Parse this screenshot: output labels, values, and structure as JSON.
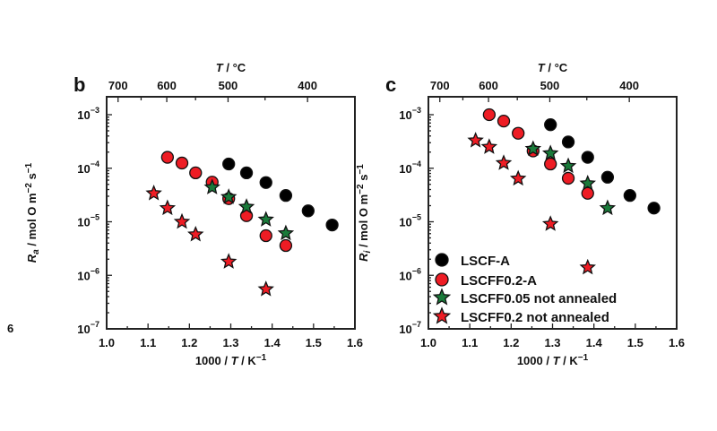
{
  "page_label": "6",
  "colors": {
    "lscf_a": "#000000",
    "lscff02_a": "#ee1c24",
    "lscff005_na": "#1a7a3a",
    "lscff02_na": "#ee1c24",
    "edge": "#111111"
  },
  "chart_data": [
    {
      "panel": "b",
      "type": "scatter",
      "title": "",
      "xlabel": "1000 / T / K⁻¹",
      "ylabel": "R_a / mol O m⁻² s⁻¹",
      "ylabel_main": "R",
      "ylabel_sub": "a",
      "ylabel_rest": " / mol O m⁻² s⁻¹",
      "x2label": "T / °C",
      "xlim": [
        1.0,
        1.6
      ],
      "ylim": [
        1e-07,
        0.001
      ],
      "yscale": "log",
      "xticks": [
        1.0,
        1.1,
        1.2,
        1.3,
        1.4,
        1.5,
        1.6
      ],
      "xtick_labels": [
        "1.0",
        "1.1",
        "1.2",
        "1.3",
        "1.4",
        "1.5",
        "1.6"
      ],
      "yticks": [
        -3,
        -4,
        -5,
        -6,
        -7
      ],
      "ytick_labels": [
        "10⁻³",
        "10⁻⁴",
        "10⁻⁵",
        "10⁻⁶",
        "10⁻⁷"
      ],
      "x2ticks_celsius": [
        700,
        600,
        500,
        400
      ],
      "x2minor_celsius": [
        650,
        550,
        450
      ],
      "legend": "none",
      "series": [
        {
          "name": "LSCF-A",
          "marker": "circle",
          "color_key": "lscf_a",
          "x": [
            1.295,
            1.338,
            1.385,
            1.433,
            1.487,
            1.545
          ],
          "y": [
            0.00012,
            8.2e-05,
            5.4e-05,
            3.1e-05,
            1.6e-05,
            8.7e-06
          ]
        },
        {
          "name": "LSCFF0.2-A",
          "marker": "circle",
          "color_key": "lscff02_a",
          "x": [
            1.147,
            1.182,
            1.215,
            1.255,
            1.295,
            1.338,
            1.385,
            1.433
          ],
          "y": [
            0.00016,
            0.000125,
            8.2e-05,
            5.5e-05,
            2.7e-05,
            1.3e-05,
            5.5e-06,
            3.6e-06
          ]
        },
        {
          "name": "LSCFF0.05 not annealed",
          "marker": "star",
          "color_key": "lscff005_na",
          "x": [
            1.255,
            1.295,
            1.338,
            1.385,
            1.433
          ],
          "y": [
            4.4e-05,
            2.9e-05,
            1.9e-05,
            1.1e-05,
            6.1e-06
          ]
        },
        {
          "name": "LSCFF0.2 not annealed",
          "marker": "star",
          "color_key": "lscff02_na",
          "x": [
            1.114,
            1.147,
            1.182,
            1.215,
            1.295,
            1.385
          ],
          "y": [
            3.4e-05,
            1.8e-05,
            1e-05,
            5.8e-06,
            1.8e-06,
            5.5e-07
          ]
        }
      ]
    },
    {
      "panel": "c",
      "type": "scatter",
      "title": "",
      "xlabel": "1000 / T / K⁻¹",
      "ylabel": "R_i / mol O m⁻² s⁻¹",
      "ylabel_main": "R",
      "ylabel_sub": "i",
      "ylabel_rest": " / mol O m⁻² s⁻¹",
      "x2label": "T / °C",
      "xlim": [
        1.0,
        1.6
      ],
      "ylim": [
        1e-07,
        0.001
      ],
      "yscale": "log",
      "xticks": [
        1.0,
        1.1,
        1.2,
        1.3,
        1.4,
        1.5,
        1.6
      ],
      "xtick_labels": [
        "1.0",
        "1.1",
        "1.2",
        "1.3",
        "1.4",
        "1.5",
        "1.6"
      ],
      "yticks": [
        -3,
        -4,
        -5,
        -6,
        -7
      ],
      "ytick_labels": [
        "10⁻³",
        "10⁻⁴",
        "10⁻⁵",
        "10⁻⁶",
        "10⁻⁷"
      ],
      "x2ticks_celsius": [
        700,
        600,
        500,
        400
      ],
      "x2minor_celsius": [
        650,
        550,
        450
      ],
      "legend": "bottom-left",
      "series": [
        {
          "name": "LSCF-A",
          "marker": "circle",
          "color_key": "lscf_a",
          "x": [
            1.295,
            1.338,
            1.385,
            1.433,
            1.487,
            1.545
          ],
          "y": [
            0.00065,
            0.00031,
            0.00016,
            6.8e-05,
            3.1e-05,
            1.8e-05
          ]
        },
        {
          "name": "LSCFF0.2-A",
          "marker": "circle",
          "color_key": "lscff02_a",
          "x": [
            1.147,
            1.182,
            1.217,
            1.253,
            1.295,
            1.338,
            1.385
          ],
          "y": [
            0.001,
            0.00076,
            0.00045,
            0.00021,
            0.00012,
            6.5e-05,
            3.4e-05
          ]
        },
        {
          "name": "LSCFF0.05 not annealed",
          "marker": "star",
          "color_key": "lscff005_na",
          "x": [
            1.253,
            1.295,
            1.338,
            1.385,
            1.433
          ],
          "y": [
            0.00023,
            0.00019,
            0.00011,
            5.2e-05,
            1.8e-05
          ]
        },
        {
          "name": "LSCFF0.2 not annealed",
          "marker": "star",
          "color_key": "lscff02_na",
          "x": [
            1.114,
            1.147,
            1.182,
            1.217,
            1.295,
            1.385
          ],
          "y": [
            0.00033,
            0.00025,
            0.000125,
            6.4e-05,
            9.1e-06,
            1.4e-06
          ]
        }
      ]
    }
  ]
}
